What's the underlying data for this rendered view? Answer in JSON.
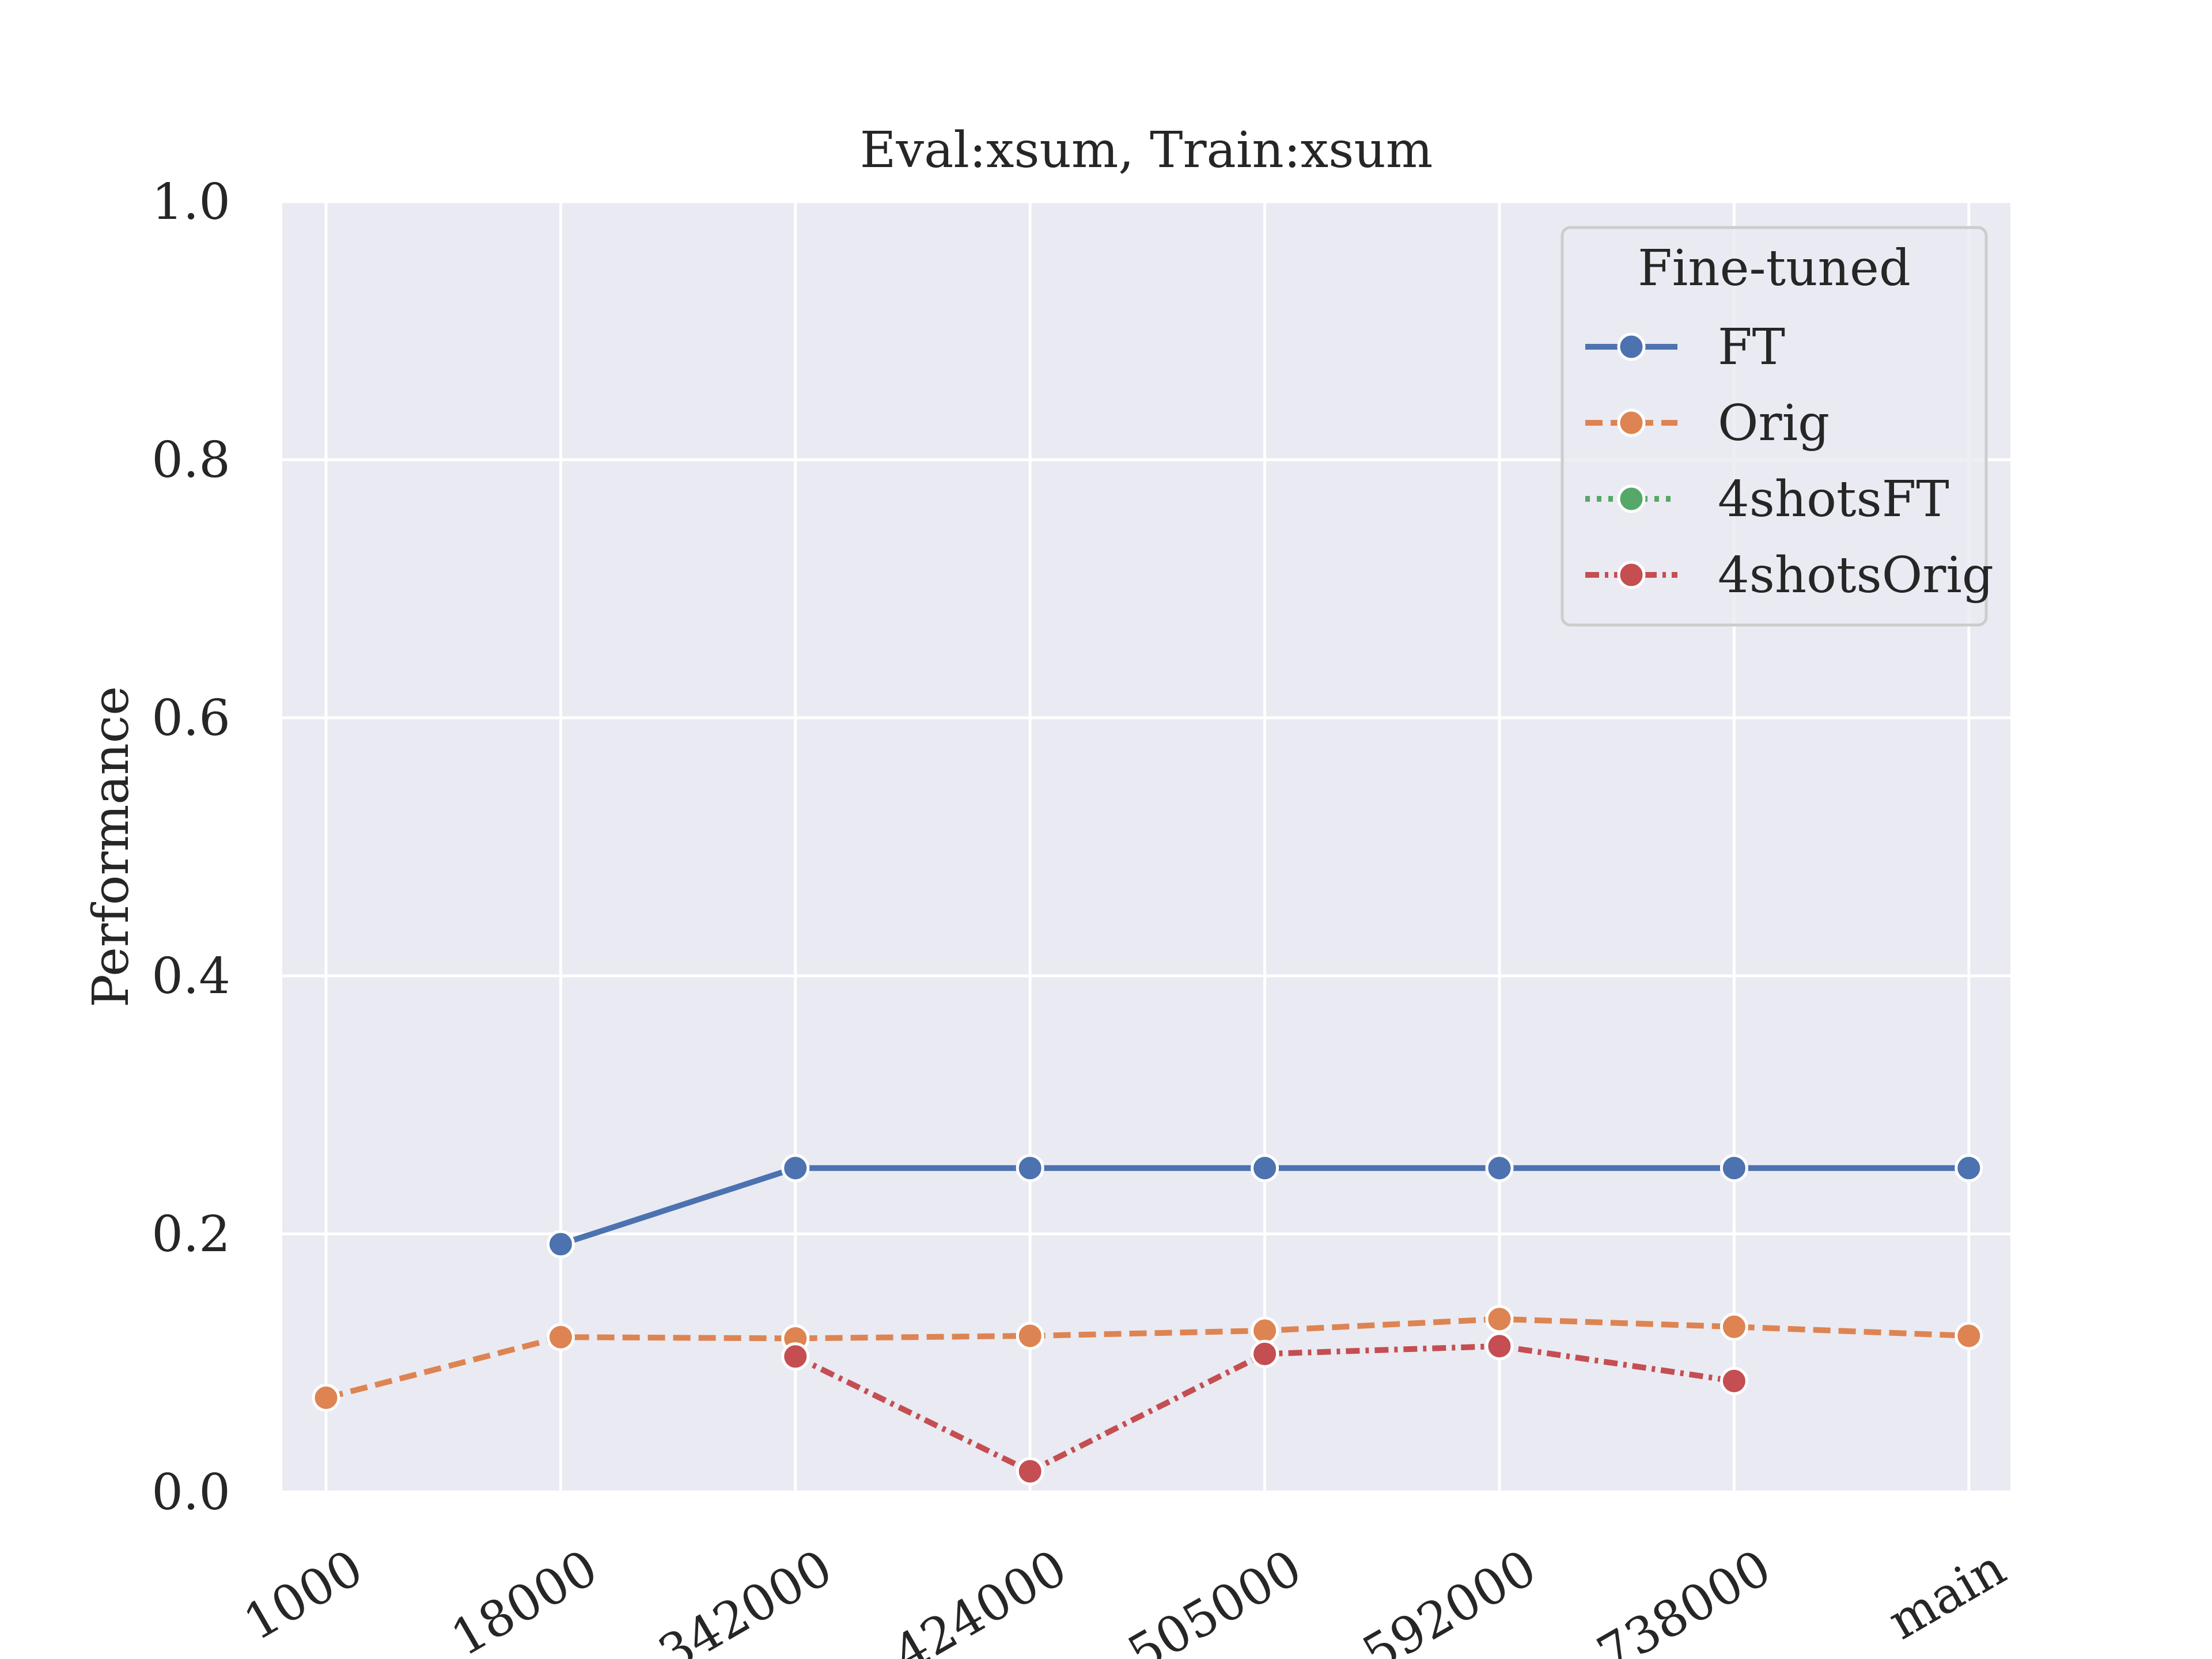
{
  "chart_data": {
    "type": "line",
    "title": "Eval:xsum, Train:xsum",
    "xlabel": "",
    "ylabel": "Performance",
    "categories": [
      "1000",
      "18000",
      "342000",
      "424000",
      "505000",
      "592000",
      "738000",
      "main"
    ],
    "ylim": [
      0.0,
      1.0
    ],
    "yticks": [
      "0.0",
      "0.2",
      "0.4",
      "0.6",
      "0.8",
      "1.0"
    ],
    "grid": true,
    "legend": {
      "title": "Fine-tuned",
      "position": "top-right"
    },
    "series": [
      {
        "name": "FT",
        "color": "#4c72b0",
        "dash": "solid",
        "values": [
          null,
          0.192,
          0.251,
          0.251,
          0.251,
          0.251,
          0.251,
          0.251
        ]
      },
      {
        "name": "Orig",
        "color": "#dd8452",
        "dash": "dashed",
        "values": [
          0.073,
          0.12,
          0.119,
          0.121,
          0.125,
          0.134,
          0.128,
          0.121
        ]
      },
      {
        "name": "4shotsFT",
        "color": "#55a868",
        "dash": "dotted",
        "values": [
          null,
          null,
          null,
          null,
          null,
          null,
          null,
          null
        ]
      },
      {
        "name": "4shotsOrig",
        "color": "#c44e52",
        "dash": "dashdot",
        "values": [
          null,
          null,
          0.105,
          0.016,
          0.107,
          0.113,
          0.086,
          null
        ]
      }
    ]
  }
}
